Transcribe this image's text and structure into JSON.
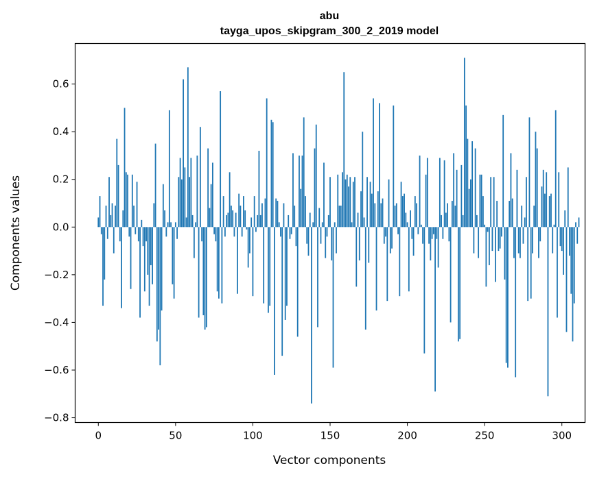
{
  "chart_data": {
    "type": "bar",
    "title": "abu",
    "subtitle": "tayga_upos_skipgram_300_2_2019 model",
    "xlabel": "Vector components",
    "ylabel": "Components values",
    "xlim": [
      -15,
      315
    ],
    "ylim": [
      -0.82,
      0.77
    ],
    "xticks": [
      0,
      50,
      100,
      150,
      200,
      250,
      300
    ],
    "yticks": [
      -0.8,
      -0.6,
      -0.4,
      -0.2,
      0.0,
      0.2,
      0.4,
      0.6
    ],
    "ytick_labels": [
      "−0.8",
      "−0.6",
      "−0.4",
      "−0.2",
      "0.0",
      "0.2",
      "0.4",
      "0.6"
    ],
    "bar_color": "#1f77b4",
    "values": [
      0.04,
      0.13,
      -0.03,
      -0.33,
      -0.22,
      0.09,
      -0.05,
      0.21,
      0.05,
      0.1,
      -0.11,
      0.09,
      0.37,
      0.26,
      -0.06,
      -0.34,
      0.07,
      0.5,
      0.23,
      0.22,
      -0.04,
      -0.26,
      0.22,
      0.09,
      -0.03,
      0.19,
      -0.06,
      -0.38,
      0.03,
      -0.08,
      -0.27,
      -0.06,
      -0.2,
      -0.33,
      -0.16,
      -0.24,
      0.1,
      0.35,
      -0.48,
      -0.43,
      -0.58,
      -0.35,
      0.18,
      0.07,
      -0.04,
      0.02,
      0.49,
      0.02,
      -0.24,
      -0.3,
      0.02,
      -0.05,
      0.21,
      0.29,
      0.2,
      0.62,
      0.25,
      0.04,
      0.67,
      0.21,
      0.29,
      0.05,
      -0.13,
      0.02,
      0.3,
      -0.38,
      0.42,
      -0.06,
      -0.37,
      -0.43,
      -0.42,
      0.33,
      0.08,
      0.18,
      0.27,
      -0.03,
      -0.06,
      -0.27,
      -0.3,
      0.57,
      -0.32,
      0.13,
      -0.04,
      0.05,
      0.06,
      0.23,
      0.09,
      0.07,
      -0.04,
      0.06,
      -0.28,
      0.14,
      0.09,
      -0.04,
      0.13,
      0.07,
      -0.01,
      -0.17,
      -0.11,
      0.04,
      -0.29,
      0.13,
      -0.02,
      0.05,
      0.32,
      0.05,
      0.1,
      -0.32,
      0.12,
      0.54,
      -0.36,
      -0.33,
      0.45,
      0.44,
      -0.62,
      0.12,
      0.11,
      0.02,
      -0.04,
      -0.54,
      0.1,
      -0.39,
      -0.33,
      0.05,
      -0.05,
      -0.03,
      0.31,
      0.09,
      -0.08,
      -0.46,
      0.3,
      0.16,
      0.3,
      0.46,
      0.13,
      -0.07,
      -0.12,
      0.06,
      -0.74,
      0.02,
      0.33,
      0.43,
      -0.42,
      0.08,
      -0.07,
      0.02,
      0.27,
      -0.13,
      -0.04,
      0.05,
      0.21,
      -0.14,
      -0.59,
      0.02,
      -0.11,
      0.22,
      0.09,
      0.09,
      0.23,
      0.65,
      0.2,
      0.22,
      0.17,
      0.21,
      0.02,
      0.19,
      0.21,
      -0.25,
      0.06,
      -0.14,
      0.15,
      0.4,
      0.04,
      -0.43,
      0.21,
      -0.15,
      0.19,
      0.14,
      0.54,
      0.1,
      -0.35,
      0.15,
      0.52,
      0.1,
      0.12,
      -0.07,
      -0.04,
      -0.31,
      0.2,
      -0.11,
      -0.09,
      0.51,
      0.09,
      0.1,
      -0.03,
      -0.29,
      0.19,
      0.13,
      0.14,
      0.06,
      0.02,
      -0.27,
      0.07,
      -0.05,
      -0.12,
      0.13,
      0.1,
      -0.03,
      0.3,
      0.01,
      -0.07,
      -0.53,
      0.22,
      0.29,
      -0.07,
      -0.14,
      -0.05,
      -0.03,
      -0.69,
      -0.05,
      -0.17,
      0.29,
      0.05,
      -0.05,
      0.28,
      0.06,
      0.1,
      -0.06,
      -0.4,
      0.11,
      0.31,
      0.09,
      0.24,
      -0.48,
      -0.47,
      0.26,
      0.05,
      0.71,
      0.51,
      0.37,
      0.16,
      0.2,
      0.36,
      -0.11,
      0.33,
      0.05,
      -0.13,
      0.22,
      0.22,
      0.13,
      0.01,
      -0.25,
      -0.02,
      -0.16,
      0.21,
      -0.1,
      0.21,
      -0.23,
      0.11,
      -0.1,
      -0.09,
      -0.04,
      0.47,
      -0.22,
      -0.57,
      -0.59,
      0.11,
      0.31,
      0.12,
      -0.13,
      -0.63,
      0.24,
      -0.11,
      -0.13,
      0.09,
      -0.07,
      0.04,
      0.21,
      -0.31,
      0.46,
      -0.3,
      -0.11,
      0.09,
      0.4,
      0.33,
      -0.13,
      -0.06,
      0.17,
      0.24,
      0.14,
      0.23,
      -0.71,
      0.13,
      0.14,
      -0.11,
      0.01,
      0.49,
      -0.38,
      0.23,
      -0.08,
      -0.1,
      -0.2,
      0.07,
      -0.44,
      0.25,
      -0.12,
      -0.28,
      -0.48,
      -0.32,
      0.02,
      -0.07,
      0.04
    ]
  }
}
